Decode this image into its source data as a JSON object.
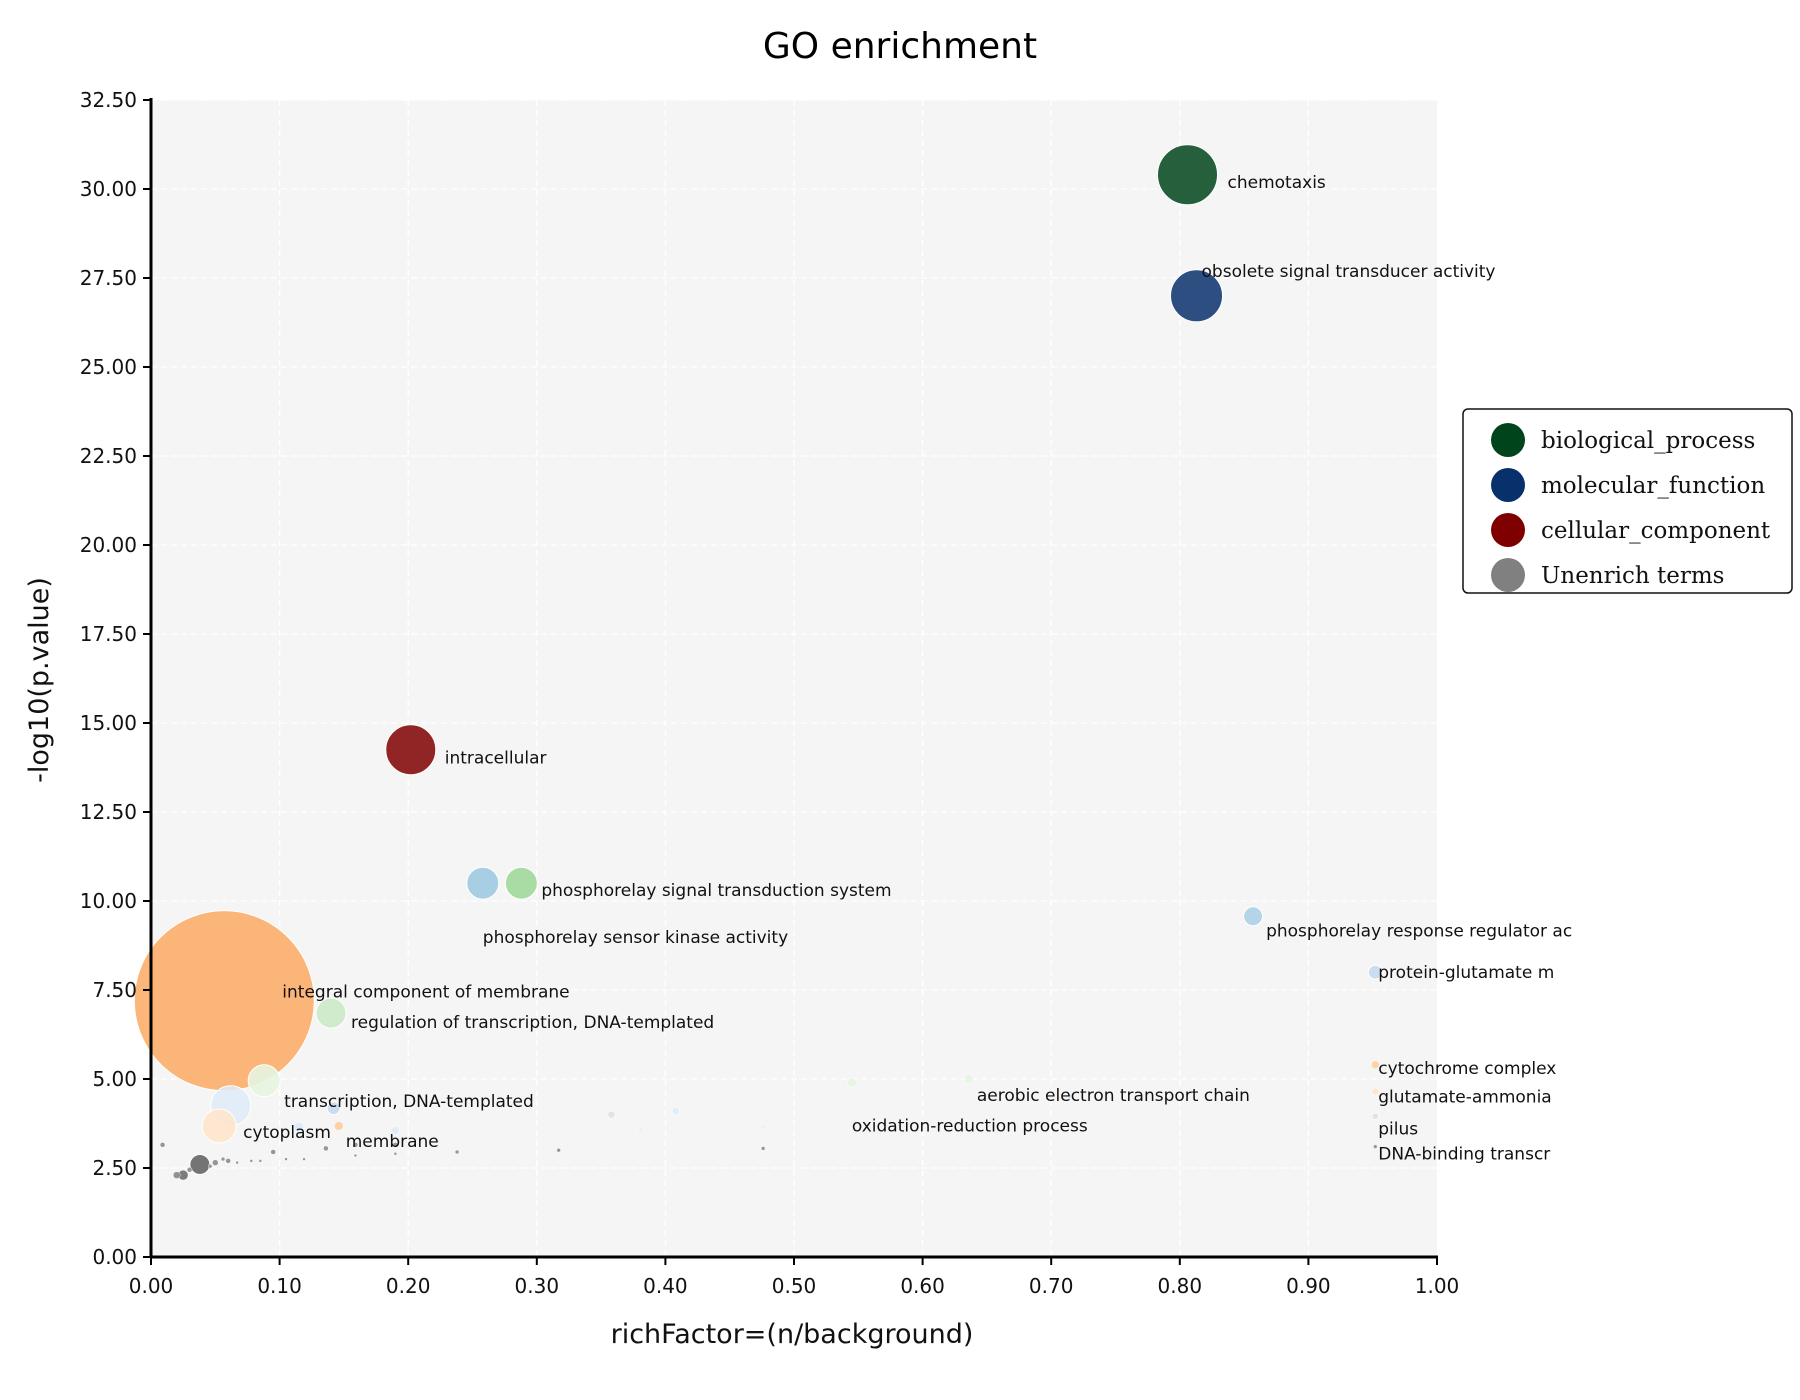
{
  "chart_data": {
    "type": "scatter",
    "title": "GO enrichment",
    "xlabel": "richFactor=(n/background)",
    "ylabel": "-log10(p.value)",
    "xlim": [
      0,
      1
    ],
    "ylim": [
      0,
      32.5
    ],
    "x_ticks": [
      "0.00",
      "0.10",
      "0.20",
      "0.30",
      "0.40",
      "0.50",
      "0.60",
      "0.70",
      "0.80",
      "0.90",
      "1.00"
    ],
    "y_ticks": [
      "0.00",
      "2.50",
      "5.00",
      "7.50",
      "10.00",
      "12.50",
      "15.00",
      "17.50",
      "20.00",
      "22.50",
      "25.00",
      "27.50",
      "30.00",
      "32.50"
    ],
    "grid": true,
    "legend_position": "right",
    "legend": [
      {
        "label": "biological_process",
        "color": "#00441b"
      },
      {
        "label": "molecular_function",
        "color": "#08306b"
      },
      {
        "label": "cellular_component",
        "color": "#7f0000"
      },
      {
        "label": "Unenrich terms",
        "color": "#808080"
      }
    ],
    "points": [
      {
        "x": 0.806,
        "y": 30.4,
        "size": 60,
        "color": "#00441b",
        "opacity": 0.85,
        "label": "chemotaxis"
      },
      {
        "x": 0.813,
        "y": 27.0,
        "size": 52,
        "color": "#08306b",
        "opacity": 0.85,
        "label": "obsolete signal transducer activity"
      },
      {
        "x": 0.202,
        "y": 14.25,
        "size": 50,
        "color": "#7f0000",
        "opacity": 0.85,
        "label": "intracellular"
      },
      {
        "x": 0.258,
        "y": 10.5,
        "size": 32,
        "color": "#9ecae1",
        "opacity": 0.9,
        "label": "phosphorelay sensor kinase activity"
      },
      {
        "x": 0.288,
        "y": 10.5,
        "size": 32,
        "color": "#a1d99b",
        "opacity": 0.9,
        "label": "phosphorelay signal transduction system"
      },
      {
        "x": 0.857,
        "y": 9.57,
        "size": 19,
        "color": "#9ecae1",
        "opacity": 0.75,
        "label": "phosphorelay response regulator ac"
      },
      {
        "x": 0.952,
        "y": 8.0,
        "size": 14,
        "color": "#c6dbef",
        "opacity": 0.9,
        "label": "protein-glutamate m"
      },
      {
        "x": 0.057,
        "y": 7.2,
        "size": 180,
        "color": "#fdae6b",
        "opacity": 0.9,
        "label": "integral component of membrane"
      },
      {
        "x": 0.14,
        "y": 6.85,
        "size": 30,
        "color": "#c7e9c0",
        "opacity": 0.8,
        "label": "regulation of transcription, DNA-templated"
      },
      {
        "x": 0.088,
        "y": 4.95,
        "size": 32,
        "color": "#e5f5e0",
        "opacity": 0.9,
        "label": "transcription, DNA-templated"
      },
      {
        "x": 0.062,
        "y": 4.25,
        "size": 40,
        "color": "#deebf7",
        "opacity": 0.85,
        "label": ""
      },
      {
        "x": 0.142,
        "y": 4.18,
        "size": 13,
        "color": "#c6dbef",
        "opacity": 0.9,
        "label": ""
      },
      {
        "x": 0.053,
        "y": 3.68,
        "size": 34,
        "color": "#fee6ce",
        "opacity": 0.95,
        "label": "cytoplasm"
      },
      {
        "x": 0.146,
        "y": 3.68,
        "size": 9,
        "color": "#fdd0a2",
        "opacity": 0.95,
        "label": "membrane"
      },
      {
        "x": 0.115,
        "y": 3.65,
        "size": 10,
        "color": "#deebf7",
        "opacity": 0.9,
        "label": ""
      },
      {
        "x": 0.19,
        "y": 3.55,
        "size": 8,
        "color": "#deebf7",
        "opacity": 0.9,
        "label": ""
      },
      {
        "x": 0.545,
        "y": 4.9,
        "size": 9,
        "color": "#e5f5e0",
        "opacity": 0.9,
        "label": "oxidation-reduction process"
      },
      {
        "x": 0.636,
        "y": 5.0,
        "size": 9,
        "color": "#e5f5e0",
        "opacity": 0.9,
        "label": "aerobic electron transport chain"
      },
      {
        "x": 0.715,
        "y": 4.5,
        "size": 6,
        "color": "#deebf7",
        "opacity": 0.9,
        "label": ""
      },
      {
        "x": 0.952,
        "y": 5.4,
        "size": 8,
        "color": "#fdd0a2",
        "opacity": 0.95,
        "label": "cytochrome complex"
      },
      {
        "x": 0.952,
        "y": 4.65,
        "size": 7,
        "color": "#fee6ce",
        "opacity": 0.95,
        "label": "glutamate-ammonia"
      },
      {
        "x": 0.952,
        "y": 3.95,
        "size": 6,
        "color": "#e0e0e0",
        "opacity": 0.9,
        "label": "pilus"
      },
      {
        "x": 0.952,
        "y": 3.1,
        "size": 4,
        "color": "#808080",
        "opacity": 0.8,
        "label": "DNA-binding transcr"
      },
      {
        "x": 0.358,
        "y": 4.0,
        "size": 7,
        "color": "#e0e0e0",
        "opacity": 0.9,
        "label": ""
      },
      {
        "x": 0.408,
        "y": 4.1,
        "size": 7,
        "color": "#deebf7",
        "opacity": 0.9,
        "label": ""
      },
      {
        "x": 0.381,
        "y": 3.55,
        "size": 6,
        "color": "#f0f0f0",
        "opacity": 0.9,
        "label": ""
      },
      {
        "x": 0.476,
        "y": 3.65,
        "size": 6,
        "color": "#f0f0f0",
        "opacity": 0.9,
        "label": ""
      },
      {
        "x": 0.476,
        "y": 3.05,
        "size": 4,
        "color": "#808080",
        "opacity": 0.8,
        "label": ""
      },
      {
        "x": 0.317,
        "y": 3.0,
        "size": 4,
        "color": "#808080",
        "opacity": 0.8,
        "label": ""
      },
      {
        "x": 0.238,
        "y": 2.95,
        "size": 4,
        "color": "#808080",
        "opacity": 0.8,
        "label": ""
      },
      {
        "x": 0.19,
        "y": 3.15,
        "size": 5,
        "color": "#808080",
        "opacity": 0.8,
        "label": ""
      },
      {
        "x": 0.19,
        "y": 2.9,
        "size": 3,
        "color": "#808080",
        "opacity": 0.8,
        "label": ""
      },
      {
        "x": 0.159,
        "y": 3.15,
        "size": 5,
        "color": "#808080",
        "opacity": 0.8,
        "label": ""
      },
      {
        "x": 0.159,
        "y": 2.85,
        "size": 3,
        "color": "#808080",
        "opacity": 0.8,
        "label": ""
      },
      {
        "x": 0.136,
        "y": 3.05,
        "size": 5,
        "color": "#808080",
        "opacity": 0.8,
        "label": ""
      },
      {
        "x": 0.119,
        "y": 2.75,
        "size": 3,
        "color": "#808080",
        "opacity": 0.8,
        "label": ""
      },
      {
        "x": 0.105,
        "y": 2.75,
        "size": 3,
        "color": "#808080",
        "opacity": 0.8,
        "label": ""
      },
      {
        "x": 0.095,
        "y": 2.95,
        "size": 5,
        "color": "#808080",
        "opacity": 0.8,
        "label": ""
      },
      {
        "x": 0.085,
        "y": 2.7,
        "size": 3,
        "color": "#808080",
        "opacity": 0.8,
        "label": ""
      },
      {
        "x": 0.078,
        "y": 2.7,
        "size": 3,
        "color": "#808080",
        "opacity": 0.8,
        "label": ""
      },
      {
        "x": 0.067,
        "y": 2.65,
        "size": 3,
        "color": "#808080",
        "opacity": 0.8,
        "label": ""
      },
      {
        "x": 0.06,
        "y": 2.7,
        "size": 5,
        "color": "#808080",
        "opacity": 0.8,
        "label": ""
      },
      {
        "x": 0.056,
        "y": 2.75,
        "size": 4,
        "color": "#808080",
        "opacity": 0.8,
        "label": ""
      },
      {
        "x": 0.05,
        "y": 2.65,
        "size": 6,
        "color": "#808080",
        "opacity": 0.8,
        "label": ""
      },
      {
        "x": 0.046,
        "y": 2.55,
        "size": 4,
        "color": "#808080",
        "opacity": 0.8,
        "label": ""
      },
      {
        "x": 0.038,
        "y": 2.6,
        "size": 20,
        "color": "#666666",
        "opacity": 0.9,
        "label": ""
      },
      {
        "x": 0.03,
        "y": 2.45,
        "size": 5,
        "color": "#808080",
        "opacity": 0.8,
        "label": ""
      },
      {
        "x": 0.025,
        "y": 2.3,
        "size": 10,
        "color": "#666666",
        "opacity": 0.85,
        "label": ""
      },
      {
        "x": 0.02,
        "y": 2.3,
        "size": 7,
        "color": "#808080",
        "opacity": 0.85,
        "label": ""
      },
      {
        "x": 0.009,
        "y": 3.15,
        "size": 5,
        "color": "#808080",
        "opacity": 0.8,
        "label": ""
      }
    ]
  }
}
